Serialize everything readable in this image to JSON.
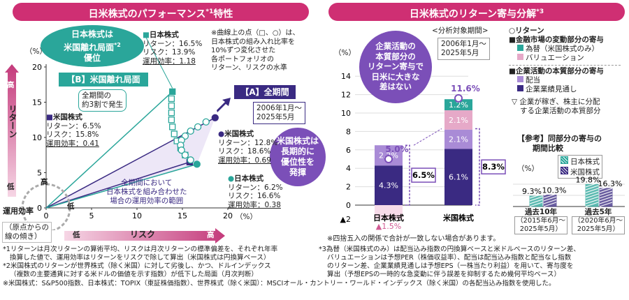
{
  "colors": {
    "magenta": "#cf2f73",
    "teal": "#2aa69a",
    "navy": "#3a2a82",
    "purple": "#7b4fb8",
    "lavender": "#a98bd6",
    "pink": "#e6a9c8",
    "pinklight": "#f7dbe9"
  },
  "left": {
    "title": "日米株式のパフォーマンス",
    "title_sup": "*1",
    "title_tail": "特性",
    "bubble_japan": [
      "日本株式は",
      "米国離れ局面",
      "優位"
    ],
    "bubble_japan_sup": "*2",
    "label_B": "【B】米国離れ局面",
    "label_B_note": [
      "全期間の",
      "約3割で発生"
    ],
    "label_A": "【A】全期間",
    "period_A": [
      "2006年1月～",
      "2025年5月"
    ],
    "note_curve": [
      "※曲線上の点（□、○）は、",
      "日本株式の組み入れ比率を",
      "10%ずつ変化させた",
      "各ポートフォリオの",
      "リターン、リスクの水準"
    ],
    "bubble_us": [
      "米国株式は",
      "長期的に",
      "優位性を",
      "発揮"
    ],
    "note_range": [
      "全期間において",
      "日本株式を組み合わせた",
      "場合の運用効率の範囲"
    ],
    "stat_labels": {
      "ret": "リターン：",
      "risk": "リスク：",
      "eff": "運用効率："
    },
    "points": [
      {
        "name": "日本株式",
        "ret": "16.5%",
        "risk": "13.9%",
        "eff": "1.18"
      },
      {
        "name": "米国株式",
        "ret": "6.5%",
        "risk": "15.8%",
        "eff": "0.41"
      },
      {
        "name": "米国株式",
        "ret": "12.8%",
        "risk": "18.6%",
        "eff": "0.69"
      },
      {
        "name": "日本株式",
        "ret": "6.2%",
        "risk": "16.6%",
        "eff": "0.38"
      }
    ],
    "yunit": "（%）",
    "xunit": "（%）",
    "high": "高",
    "low": "低",
    "ylabel": "リターン",
    "xlabel": "リスク",
    "eff_title": "運用効率",
    "eff_note": [
      "（原点からの",
      "線の傾き）"
    ]
  },
  "right": {
    "title": "日米株式のリターン寄与分解",
    "title_sup": "*3",
    "yunit": "（%）",
    "bubble": [
      "企業活動の",
      "本質部分の",
      "リターン寄与で",
      "日米に大きな",
      "差はない"
    ],
    "period_label": "<分析対象期間>",
    "period": [
      "2006年1月～",
      "2025年5月"
    ],
    "totals": [
      "5.0%",
      "11.6%"
    ],
    "core_totals": [
      "6.5%",
      "8.3%"
    ],
    "neg_label": "▲1.5%",
    "legend": {
      "return": "○リターン",
      "h1": "■金融市場の変動部分の寄与",
      "fx": "為替（米国株式のみ）",
      "val": "バリュエーション",
      "h2": "■企業活動の本質部分の寄与",
      "div": "配当",
      "eps": "企業業績見通し",
      "note": [
        "企業が稼ぎ、株主に分配",
        "する企業活動の本質部分"
      ]
    },
    "ref_title": [
      "【参考】同部分の寄与の",
      "期間比較"
    ],
    "ref_legend": [
      "日本株式",
      "米国株式"
    ],
    "ref_values": [
      "9.3%",
      "10.3%",
      "19.8%",
      "16.3%"
    ],
    "ref_unit": "（%）",
    "ref_periods": [
      {
        "t": "過去10年",
        "p": [
          "（2015年6月～",
          "2025年5月）"
        ]
      },
      {
        "t": "過去5年",
        "p": [
          "（2020年6月～",
          "2025年5月）"
        ]
      }
    ],
    "round_note": "※四捨五入の関係で合計が一致しない場合があります。"
  },
  "footnotes": [
    "*1リターンは月次リターンの算術平均、リスクは月次リターンの標準偏差を、それぞれ年率",
    "換算した値で、運用効率はリターンをリスクで除して算出（米国株式は円換算ベース）",
    "*2米国株式のリターンが世界株式（除く米国）に対して劣後し、かつ、ドルインデックス",
    "（複数の主要通貨に対する米ドルの価値を示す指数）が低下した局面（月次判断）",
    "*3為替（米国株式のみ）は配当込み指数の円換算ベースと米ドルベースのリターン差、",
    "バリュエーションは予想PER（株価収益率）、配当は配当込み指数と配当なし指数",
    "のリターン差、企業業績見通しは予想EPS（一株当たり利益）を用いて、寄与度を",
    "算出（予想EPSの一時的な急変動に伴う誤差を抑制するため幾何平均ベース）",
    "※米国株式：S&P500指数、日本株式：TOPIX（東証株価指数）、世界株式（除く米国）：MSCIオール・カントリー・ワールド・インデックス（除く米国）の各配当込み指数を使用した。"
  ],
  "chart_data": [
    {
      "type": "scatter",
      "xlabel": "リスク",
      "ylabel": "リターン",
      "xlim": [
        0,
        20
      ],
      "ylim": [
        0,
        20
      ],
      "xticks": [
        0,
        5,
        10,
        15,
        20
      ],
      "yticks": [
        0,
        5,
        10,
        15,
        20
      ],
      "series": [
        {
          "name": "【B】米国離れ局面",
          "points": [
            {
              "x": 15.8,
              "y": 6.5
            },
            {
              "x": 15.3,
              "y": 7.5
            },
            {
              "x": 14.8,
              "y": 8.5
            },
            {
              "x": 14.4,
              "y": 9.5
            },
            {
              "x": 14.1,
              "y": 10.5
            },
            {
              "x": 13.9,
              "y": 11.5
            },
            {
              "x": 13.8,
              "y": 12.5
            },
            {
              "x": 13.8,
              "y": 13.5
            },
            {
              "x": 13.8,
              "y": 14.5
            },
            {
              "x": 13.8,
              "y": 15.5
            },
            {
              "x": 13.9,
              "y": 16.5
            }
          ]
        },
        {
          "name": "【A】全期間",
          "points": [
            {
              "x": 18.6,
              "y": 12.8
            },
            {
              "x": 17.6,
              "y": 12.2
            },
            {
              "x": 16.7,
              "y": 11.5
            },
            {
              "x": 15.9,
              "y": 10.9
            },
            {
              "x": 15.3,
              "y": 10.2
            },
            {
              "x": 14.9,
              "y": 9.6
            },
            {
              "x": 14.8,
              "y": 8.9
            },
            {
              "x": 14.9,
              "y": 8.2
            },
            {
              "x": 15.3,
              "y": 7.5
            },
            {
              "x": 15.9,
              "y": 6.8
            },
            {
              "x": 16.6,
              "y": 6.2
            }
          ]
        }
      ]
    },
    {
      "type": "bar",
      "stacked": true,
      "categories": [
        "日本株式",
        "米国株式"
      ],
      "ylim": [
        -2,
        14
      ],
      "yticks": [
        0,
        2,
        4,
        6,
        8,
        10,
        12,
        14
      ],
      "series": [
        {
          "name": "企業業績見通し",
          "values": [
            4.3,
            6.1
          ]
        },
        {
          "name": "配当",
          "values": [
            2.2,
            2.1
          ]
        },
        {
          "name": "バリュエーション",
          "values": [
            -1.5,
            2.1
          ]
        },
        {
          "name": "為替（米国株式のみ）",
          "values": [
            0,
            1.2
          ]
        }
      ],
      "totals": [
        5.0,
        11.6
      ]
    },
    {
      "type": "bar",
      "categories": [
        "過去10年",
        "過去5年"
      ],
      "series": [
        {
          "name": "日本株式",
          "values": [
            9.3,
            19.8
          ]
        },
        {
          "name": "米国株式",
          "values": [
            10.3,
            16.3
          ]
        }
      ]
    }
  ]
}
